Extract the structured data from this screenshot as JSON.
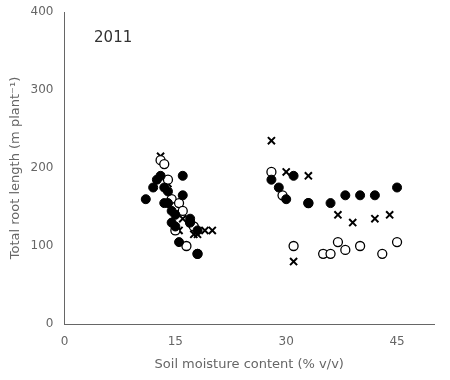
{
  "chart_data": {
    "type": "scatter",
    "x_label": "Soil moisture content (% v/v)",
    "y_label": "Total root length (m plant⁻¹)",
    "annotation": "2011",
    "xlim": [
      0,
      50
    ],
    "ylim": [
      0,
      400
    ],
    "xticks": [
      0,
      15,
      30,
      45
    ],
    "yticks": [
      0,
      100,
      200,
      300,
      400
    ],
    "grid": false,
    "series": [
      {
        "color": "#000000",
        "marker": "circle",
        "x": [
          11,
          12,
          12.5,
          13,
          13.5,
          13.5,
          14,
          14,
          14.5,
          14.5,
          15,
          15,
          15.5,
          16,
          16,
          17,
          17,
          18,
          18,
          28,
          29,
          30,
          31,
          33,
          36,
          38,
          40,
          42,
          45
        ],
        "values": [
          160,
          175,
          185,
          190,
          175,
          155,
          170,
          155,
          145,
          130,
          140,
          125,
          105,
          190,
          165,
          135,
          130,
          90,
          120,
          185,
          175,
          160,
          190,
          155,
          155,
          165,
          165,
          165,
          175
        ]
      },
      {
        "color": "#000000",
        "marker": "open_circle",
        "x": [
          13,
          13.5,
          14,
          14.5,
          15,
          15,
          15.5,
          16,
          16.5,
          17,
          17.5,
          18,
          28,
          29.5,
          31,
          33,
          35,
          36,
          37,
          38,
          40,
          43,
          45
        ],
        "values": [
          210,
          205,
          185,
          160,
          150,
          120,
          155,
          145,
          100,
          130,
          125,
          90,
          195,
          165,
          100,
          155,
          90,
          90,
          105,
          95,
          100,
          90,
          105
        ]
      },
      {
        "color": "#000000",
        "marker": "x",
        "x": [
          13,
          14,
          15,
          15.5,
          16,
          17,
          17.5,
          18,
          19,
          20,
          28,
          30,
          31,
          33,
          35,
          37,
          39,
          42,
          44
        ],
        "values": [
          215,
          180,
          120,
          120,
          135,
          130,
          115,
          115,
          120,
          120,
          235,
          195,
          80,
          190,
          90,
          140,
          130,
          135,
          140
        ]
      }
    ]
  }
}
